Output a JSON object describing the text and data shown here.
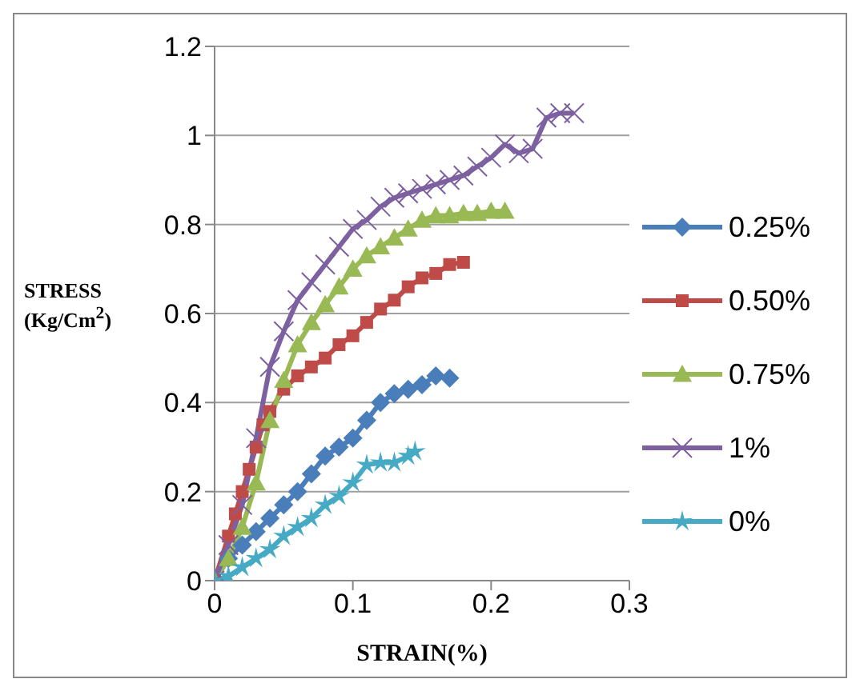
{
  "chart_data": {
    "type": "line",
    "xlabel": "STRAIN(%)",
    "ylabel": "STRESS (Kg/Cm$^{2}$)",
    "xlim": [
      0,
      0.3
    ],
    "xticks": [
      0,
      0.1,
      0.2,
      0.3
    ],
    "ylim": [
      0,
      1.2
    ],
    "yticks": [
      0,
      0.2,
      0.4,
      0.6,
      0.8,
      1,
      1.2
    ],
    "grid": "y",
    "legend": "right",
    "series": [
      {
        "name": "0.25%",
        "color": "#4a7ebb",
        "marker": "diamond",
        "x": [
          0,
          0.01,
          0.02,
          0.03,
          0.04,
          0.05,
          0.06,
          0.07,
          0.08,
          0.09,
          0.1,
          0.11,
          0.12,
          0.13,
          0.14,
          0.15,
          0.16,
          0.17
        ],
        "values": [
          0,
          0.05,
          0.08,
          0.11,
          0.14,
          0.17,
          0.2,
          0.24,
          0.28,
          0.3,
          0.32,
          0.36,
          0.4,
          0.42,
          0.43,
          0.44,
          0.46,
          0.455
        ]
      },
      {
        "name": "0.50%",
        "color": "#be4b48",
        "marker": "square",
        "x": [
          0,
          0.01,
          0.015,
          0.02,
          0.025,
          0.03,
          0.035,
          0.04,
          0.05,
          0.06,
          0.07,
          0.08,
          0.09,
          0.1,
          0.11,
          0.12,
          0.13,
          0.14,
          0.15,
          0.16,
          0.17,
          0.18
        ],
        "values": [
          0,
          0.1,
          0.15,
          0.2,
          0.25,
          0.3,
          0.35,
          0.38,
          0.43,
          0.46,
          0.48,
          0.5,
          0.53,
          0.55,
          0.58,
          0.61,
          0.63,
          0.66,
          0.68,
          0.69,
          0.71,
          0.715
        ]
      },
      {
        "name": "0.75%",
        "color": "#98b954",
        "marker": "triangle",
        "x": [
          0,
          0.01,
          0.02,
          0.03,
          0.04,
          0.05,
          0.06,
          0.07,
          0.08,
          0.09,
          0.1,
          0.11,
          0.12,
          0.13,
          0.14,
          0.15,
          0.16,
          0.17,
          0.18,
          0.19,
          0.2,
          0.21
        ],
        "values": [
          0,
          0.05,
          0.12,
          0.22,
          0.36,
          0.45,
          0.53,
          0.58,
          0.62,
          0.66,
          0.7,
          0.73,
          0.75,
          0.77,
          0.79,
          0.81,
          0.82,
          0.82,
          0.825,
          0.825,
          0.83,
          0.83
        ]
      },
      {
        "name": "1%",
        "color": "#7d60a0",
        "marker": "cross",
        "x": [
          0,
          0.01,
          0.02,
          0.03,
          0.04,
          0.05,
          0.06,
          0.07,
          0.08,
          0.09,
          0.1,
          0.11,
          0.12,
          0.13,
          0.14,
          0.15,
          0.16,
          0.17,
          0.18,
          0.19,
          0.2,
          0.21,
          0.22,
          0.23,
          0.24,
          0.25,
          0.26
        ],
        "values": [
          0,
          0.08,
          0.17,
          0.32,
          0.48,
          0.56,
          0.63,
          0.67,
          0.71,
          0.75,
          0.79,
          0.81,
          0.84,
          0.86,
          0.87,
          0.88,
          0.89,
          0.9,
          0.91,
          0.93,
          0.95,
          0.98,
          0.96,
          0.97,
          1.04,
          1.05,
          1.05
        ]
      },
      {
        "name": "0%",
        "color": "#46aac5",
        "marker": "star",
        "x": [
          0,
          0.01,
          0.02,
          0.03,
          0.04,
          0.05,
          0.06,
          0.07,
          0.08,
          0.09,
          0.1,
          0.11,
          0.12,
          0.13,
          0.14,
          0.145
        ],
        "values": [
          0,
          0.01,
          0.03,
          0.05,
          0.07,
          0.1,
          0.12,
          0.14,
          0.17,
          0.19,
          0.22,
          0.26,
          0.265,
          0.265,
          0.28,
          0.29
        ]
      }
    ]
  }
}
